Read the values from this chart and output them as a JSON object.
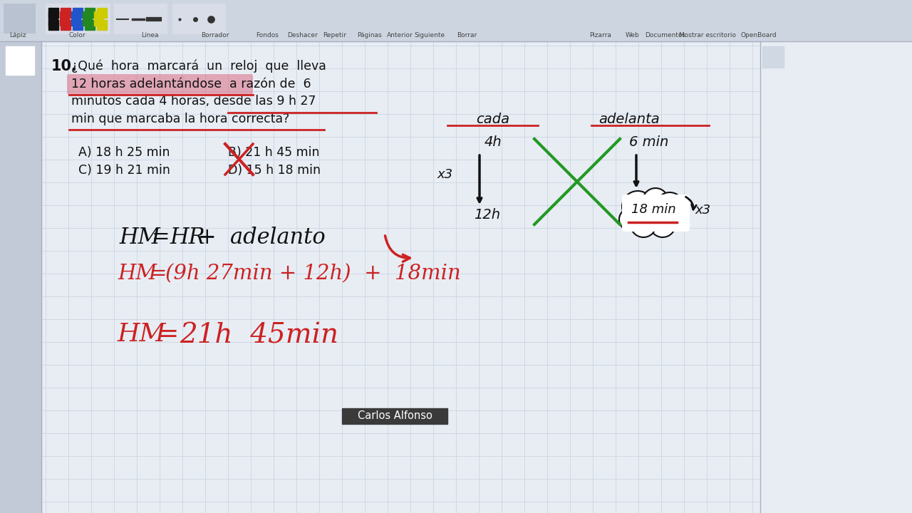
{
  "bg_color": "#e8edf4",
  "grid_color": "#c5d0de",
  "toolbar_bg": "#cdd5e0",
  "question_number": "10.",
  "question_lines": [
    "¿Qué  hora  marcará  un  reloj  que  lleva",
    "12 horas adelantándose  a razón de  6",
    "minutos cada 4 horas, desde las 9 h 27",
    "min que marcaba la hora correcta?"
  ],
  "options_left": [
    "A) 18 h 25 min",
    "C) 19 h 21 min"
  ],
  "options_right": [
    "B) 21 h 45 min",
    "D) 15 h 18 min"
  ],
  "label_cada": "cada",
  "label_adelanta": "adelanta",
  "label_4h": "4h",
  "label_12h": "12h",
  "label_6min": "6 min",
  "label_18min": "18 min",
  "label_x3": "x3",
  "watermark": "Carlos Alfonso",
  "highlight_color": "#d9607a",
  "red_color": "#cc2222",
  "green_color": "#229922",
  "black_color": "#111111",
  "toolbar_colors": [
    "#111111",
    "#cc2222",
    "#2255cc",
    "#228822",
    "#cccc00"
  ],
  "toolbar_labels": [
    "Lápiz",
    "Color",
    "Línea",
    "Borrador",
    "Fondos",
    "Deshacer",
    "Repetir",
    "Páginas",
    "Anterior",
    "Siguiente",
    "Borrar",
    "Pizarra",
    "Web",
    "Documentos",
    "Mostrar escritorio",
    "OpenBoard"
  ],
  "toolbar_x": [
    25,
    108,
    210,
    302,
    375,
    424,
    470,
    519,
    561,
    603,
    655,
    843,
    888,
    934,
    993,
    1065
  ]
}
